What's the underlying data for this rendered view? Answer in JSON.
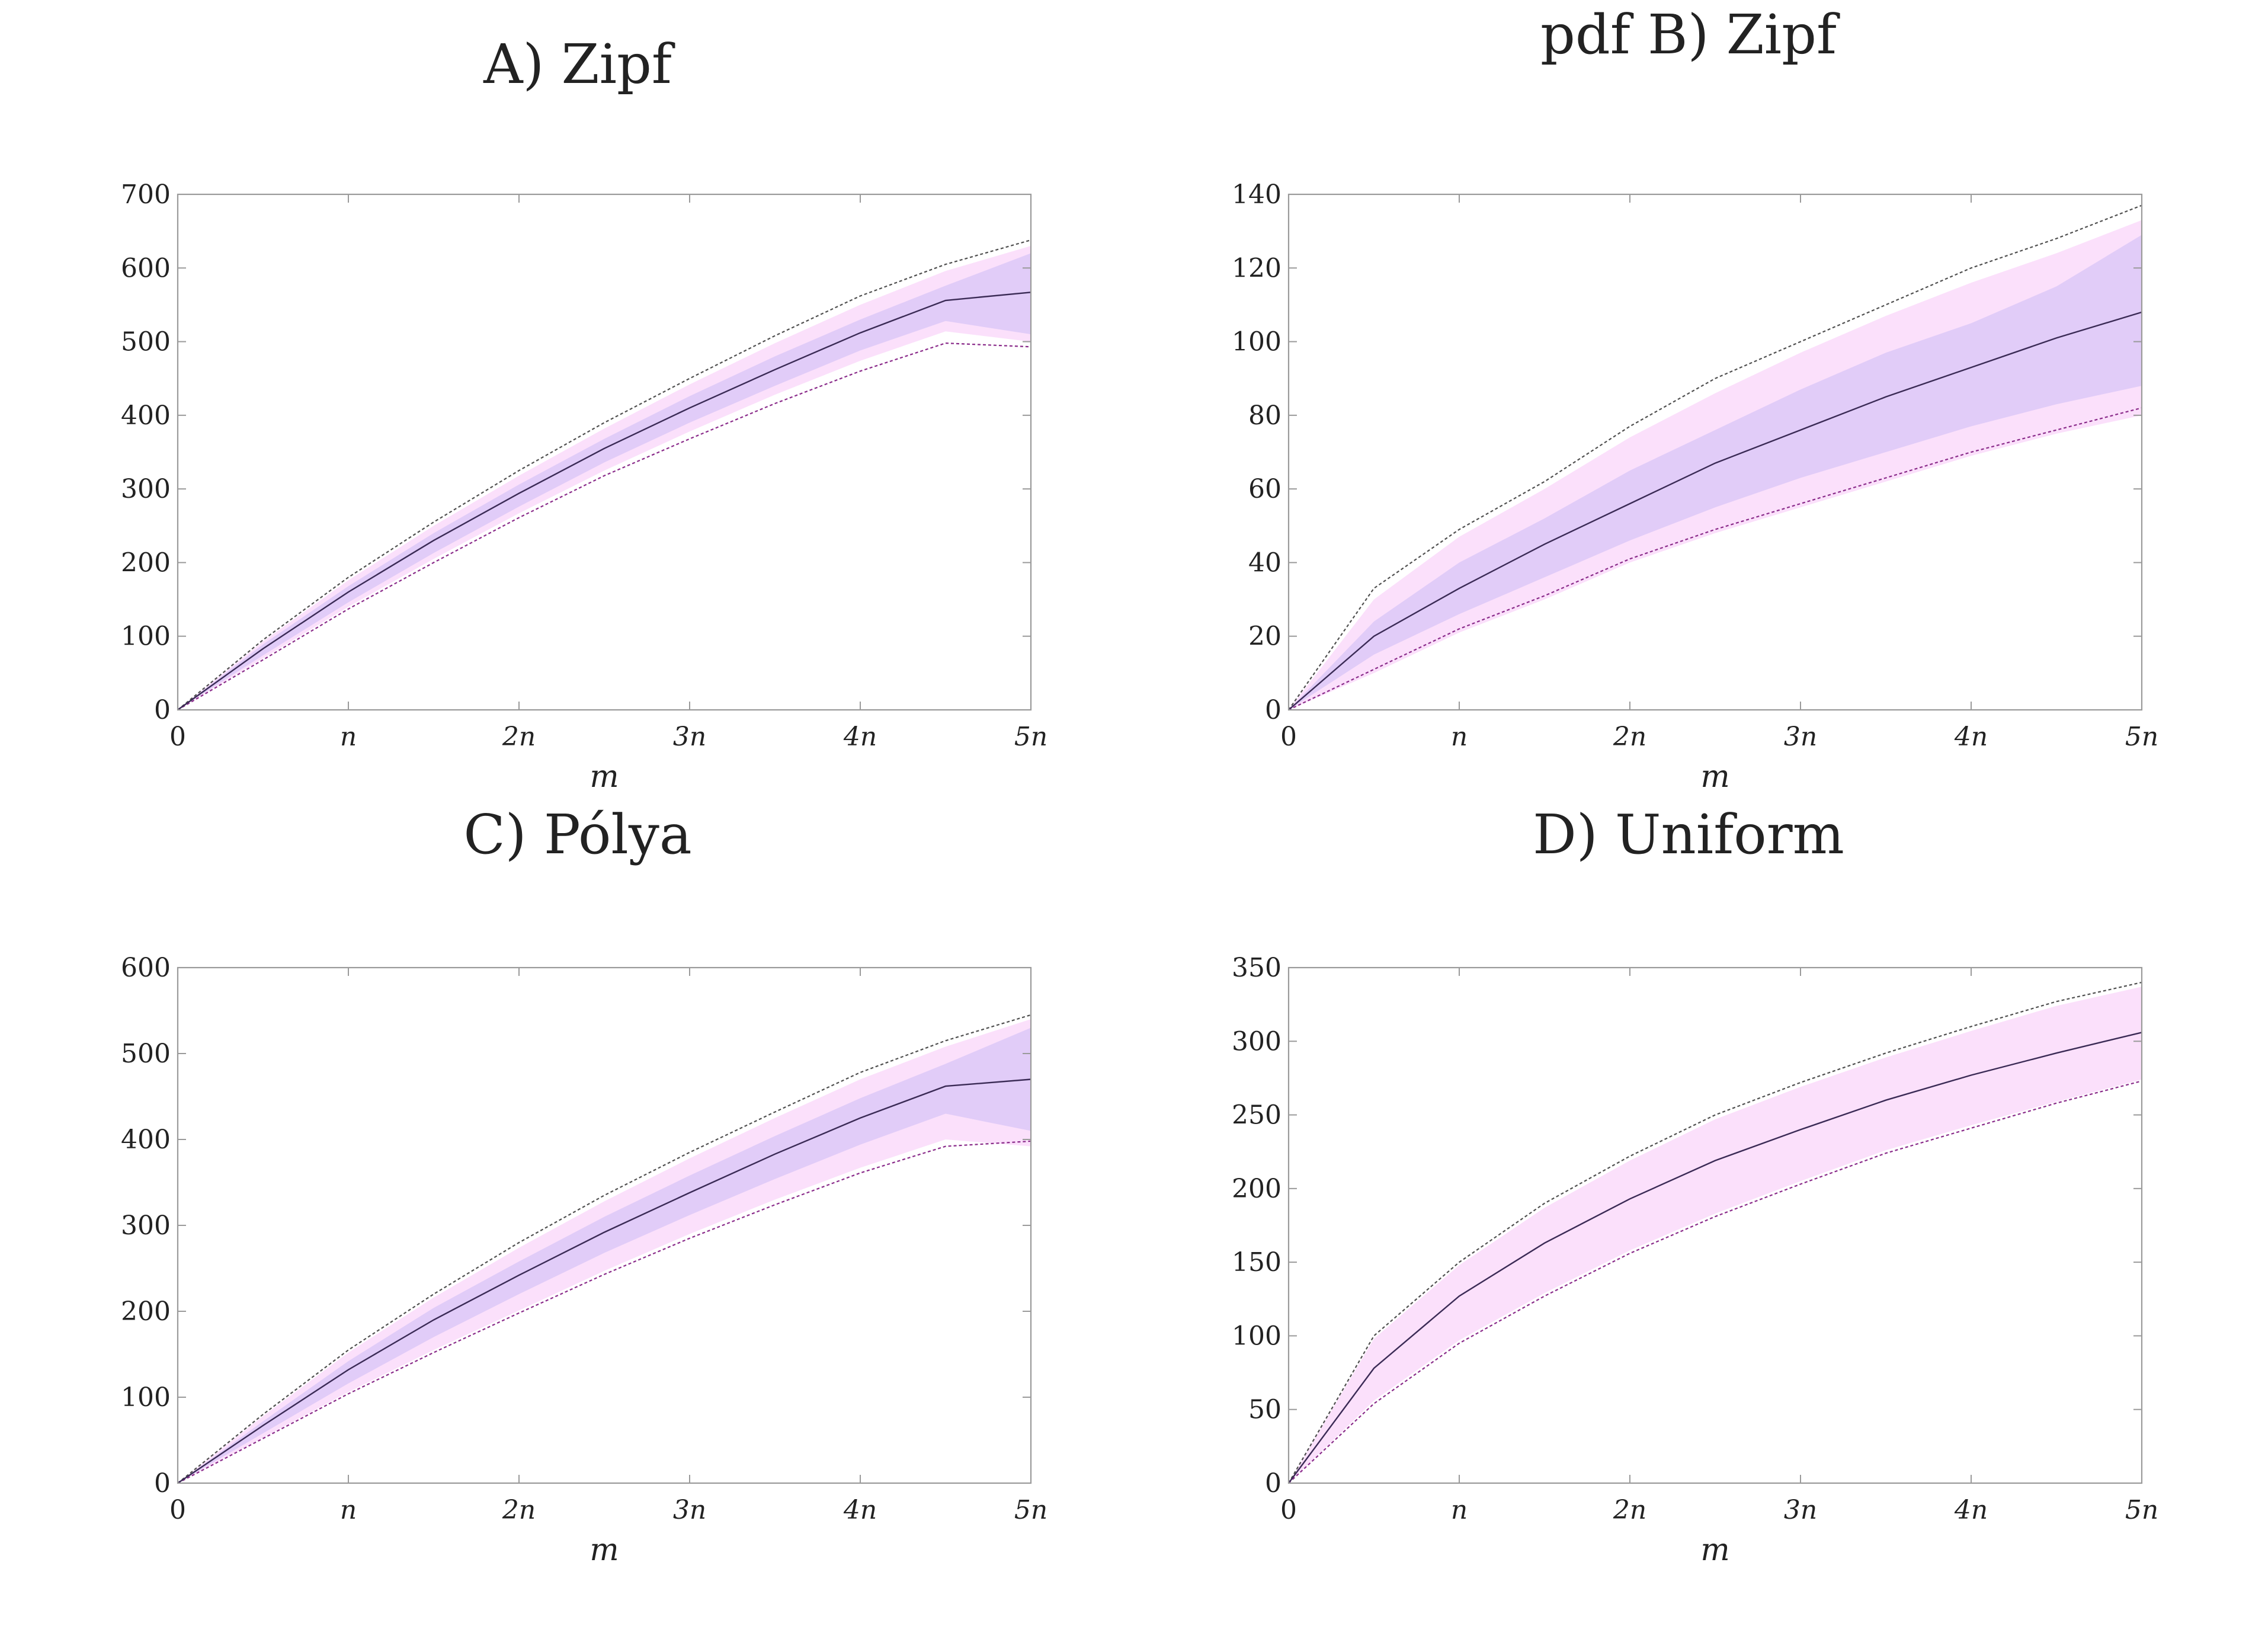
{
  "colors": {
    "outer_band": "#fbe0fb",
    "inner_band": "#e1ccf8",
    "median": "#3a2a55",
    "upper_extreme": "#4f4f4f",
    "lower_extreme": "#8a2b8a",
    "axis": "#9a9a9a"
  },
  "chart_data": [
    {
      "type": "area",
      "title": "A) Zipf",
      "xlabel": "m",
      "ylabel": "",
      "xlim": [
        0,
        5
      ],
      "ylim": [
        0,
        700
      ],
      "x_ticks": [
        0,
        1,
        2,
        3,
        4,
        5
      ],
      "x_tick_labels": [
        "0",
        "n",
        "2n",
        "3n",
        "4n",
        "5n"
      ],
      "y_ticks": [
        0,
        100,
        200,
        300,
        400,
        500,
        600,
        700
      ],
      "y_tick_labels": [
        "0",
        "100",
        "200",
        "300",
        "400",
        "500",
        "600",
        "700"
      ],
      "x": [
        0,
        0.5,
        1,
        1.5,
        2,
        2.5,
        3,
        3.5,
        4,
        4.5,
        5
      ],
      "series": [
        {
          "name": "upper extreme",
          "values": [
            0,
            95,
            180,
            255,
            325,
            390,
            450,
            508,
            562,
            605,
            638
          ]
        },
        {
          "name": "upper outer",
          "values": [
            0,
            93,
            176,
            250,
            318,
            382,
            442,
            498,
            550,
            596,
            630
          ]
        },
        {
          "name": "upper inner",
          "values": [
            0,
            89,
            168,
            240,
            306,
            368,
            426,
            480,
            530,
            576,
            620
          ]
        },
        {
          "name": "median",
          "values": [
            0,
            83,
            160,
            230,
            294,
            355,
            410,
            462,
            512,
            556,
            567
          ]
        },
        {
          "name": "lower inner",
          "values": [
            0,
            74,
            146,
            213,
            276,
            336,
            390,
            440,
            488,
            528,
            510
          ]
        },
        {
          "name": "lower outer",
          "values": [
            0,
            70,
            140,
            205,
            267,
            325,
            378,
            428,
            474,
            514,
            500
          ]
        },
        {
          "name": "lower extreme",
          "values": [
            0,
            68,
            137,
            200,
            261,
            318,
            368,
            416,
            460,
            498,
            493
          ]
        }
      ]
    },
    {
      "type": "area",
      "title": "pdf B) Zipf",
      "xlabel": "m",
      "ylabel": "",
      "xlim": [
        0,
        5
      ],
      "ylim": [
        0,
        140
      ],
      "x_ticks": [
        0,
        1,
        2,
        3,
        4,
        5
      ],
      "x_tick_labels": [
        "0",
        "n",
        "2n",
        "3n",
        "4n",
        "5n"
      ],
      "y_ticks": [
        0,
        20,
        40,
        60,
        80,
        100,
        120,
        140
      ],
      "y_tick_labels": [
        "0",
        "20",
        "40",
        "60",
        "80",
        "100",
        "120",
        "140"
      ],
      "x": [
        0,
        0.5,
        1,
        1.5,
        2,
        2.5,
        3,
        3.5,
        4,
        4.5,
        5
      ],
      "series": [
        {
          "name": "upper extreme",
          "values": [
            0,
            33,
            49,
            62,
            77,
            90,
            100,
            110,
            120,
            128,
            137
          ]
        },
        {
          "name": "upper outer",
          "values": [
            0,
            30,
            47,
            60,
            74,
            86,
            97,
            107,
            116,
            124,
            133
          ]
        },
        {
          "name": "upper inner",
          "values": [
            0,
            24,
            40,
            52,
            65,
            76,
            87,
            97,
            105,
            115,
            129
          ]
        },
        {
          "name": "median",
          "values": [
            0,
            20,
            33,
            45,
            56,
            67,
            76,
            85,
            93,
            101,
            108
          ]
        },
        {
          "name": "lower inner",
          "values": [
            0,
            15,
            26,
            36,
            46,
            55,
            63,
            70,
            77,
            83,
            88
          ]
        },
        {
          "name": "lower outer",
          "values": [
            0,
            10,
            21,
            30,
            40,
            48,
            55,
            62,
            69,
            75,
            80
          ]
        },
        {
          "name": "lower extreme",
          "values": [
            0,
            11,
            22,
            31,
            41,
            49,
            56,
            63,
            70,
            76,
            82
          ]
        }
      ]
    },
    {
      "type": "area",
      "title": "C) Pólya",
      "xlabel": "m",
      "ylabel": "",
      "xlim": [
        0,
        5
      ],
      "ylim": [
        0,
        600
      ],
      "x_ticks": [
        0,
        1,
        2,
        3,
        4,
        5
      ],
      "x_tick_labels": [
        "0",
        "n",
        "2n",
        "3n",
        "4n",
        "5n"
      ],
      "y_ticks": [
        0,
        100,
        200,
        300,
        400,
        500,
        600
      ],
      "y_tick_labels": [
        "0",
        "100",
        "200",
        "300",
        "400",
        "500",
        "600"
      ],
      "x": [
        0,
        0.5,
        1,
        1.5,
        2,
        2.5,
        3,
        3.5,
        4,
        4.5,
        5
      ],
      "series": [
        {
          "name": "upper extreme",
          "values": [
            0,
            80,
            155,
            220,
            280,
            335,
            385,
            432,
            478,
            515,
            545
          ]
        },
        {
          "name": "upper outer",
          "values": [
            0,
            78,
            152,
            216,
            274,
            328,
            378,
            425,
            470,
            508,
            540
          ]
        },
        {
          "name": "upper inner",
          "values": [
            0,
            72,
            142,
            204,
            258,
            310,
            358,
            404,
            448,
            488,
            530
          ]
        },
        {
          "name": "median",
          "values": [
            0,
            67,
            132,
            190,
            242,
            292,
            338,
            383,
            425,
            462,
            470
          ]
        },
        {
          "name": "lower inner",
          "values": [
            0,
            58,
            116,
            170,
            220,
            268,
            312,
            354,
            394,
            430,
            410
          ]
        },
        {
          "name": "lower outer",
          "values": [
            0,
            53,
            106,
            155,
            201,
            247,
            290,
            330,
            367,
            400,
            392
          ]
        },
        {
          "name": "lower extreme",
          "values": [
            0,
            52,
            104,
            152,
            198,
            243,
            285,
            324,
            361,
            392,
            398
          ]
        }
      ]
    },
    {
      "type": "area",
      "title": "D) Uniform",
      "xlabel": "m",
      "ylabel": "",
      "xlim": [
        0,
        5
      ],
      "ylim": [
        0,
        350
      ],
      "x_ticks": [
        0,
        1,
        2,
        3,
        4,
        5
      ],
      "x_tick_labels": [
        "0",
        "n",
        "2n",
        "3n",
        "4n",
        "5n"
      ],
      "y_ticks": [
        0,
        50,
        100,
        150,
        200,
        250,
        300,
        350
      ],
      "y_tick_labels": [
        "0",
        "50",
        "100",
        "150",
        "200",
        "250",
        "300",
        "350"
      ],
      "x": [
        0,
        0.5,
        1,
        1.5,
        2,
        2.5,
        3,
        3.5,
        4,
        4.5,
        5
      ],
      "series": [
        {
          "name": "upper extreme",
          "values": [
            0,
            100,
            150,
            190,
            222,
            250,
            272,
            292,
            310,
            327,
            340
          ]
        },
        {
          "name": "upper outer",
          "values": [
            0,
            98,
            148,
            187,
            219,
            247,
            269,
            289,
            307,
            324,
            337
          ]
        },
        {
          "name": "median",
          "values": [
            0,
            78,
            127,
            163,
            193,
            219,
            240,
            260,
            277,
            292,
            306
          ]
        },
        {
          "name": "lower outer",
          "values": [
            0,
            56,
            97,
            129,
            158,
            183,
            205,
            226,
            243,
            259,
            274
          ]
        },
        {
          "name": "lower extreme",
          "values": [
            0,
            54,
            95,
            127,
            156,
            181,
            203,
            224,
            241,
            258,
            273
          ]
        }
      ]
    }
  ]
}
